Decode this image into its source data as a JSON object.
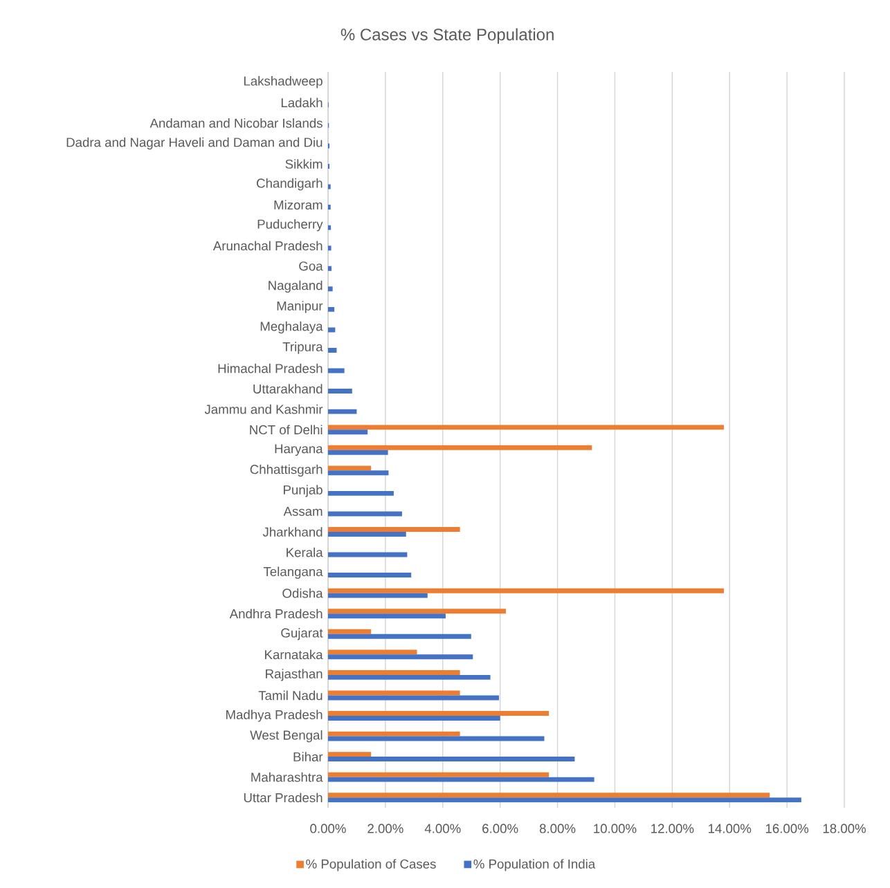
{
  "chart_data": {
    "type": "bar",
    "orientation": "horizontal",
    "title": "% Cases vs State Population",
    "categories": [
      "Lakshadweep",
      "Ladakh",
      "Andaman and Nicobar Islands",
      "Dadra and Nagar Haveli and Daman and Diu",
      "Sikkim",
      "Chandigarh",
      "Mizoram",
      "Puducherry",
      "Arunachal Pradesh",
      "Goa",
      "Nagaland",
      "Manipur",
      "Meghalaya",
      "Tripura",
      "Himachal Pradesh",
      "Uttarakhand",
      "Jammu and Kashmir",
      "NCT of Delhi",
      "Haryana",
      "Chhattisgarh",
      "Punjab",
      "Assam",
      "Jharkhand",
      "Kerala",
      "Telangana",
      "Odisha",
      "Andhra Pradesh",
      "Gujarat",
      "Karnataka",
      "Rajasthan",
      "Tamil Nadu",
      "Madhya Pradesh",
      "West Bengal",
      "Bihar",
      "Maharashtra",
      "Uttar Pradesh"
    ],
    "series": [
      {
        "name": "% Population of Cases",
        "color": "#ed7d31",
        "values": [
          null,
          null,
          null,
          null,
          null,
          null,
          null,
          null,
          null,
          null,
          null,
          null,
          null,
          null,
          null,
          null,
          null,
          13.8,
          9.2,
          1.5,
          null,
          null,
          4.6,
          null,
          null,
          13.8,
          6.2,
          1.5,
          3.1,
          4.6,
          4.6,
          7.7,
          4.6,
          1.5,
          7.7,
          15.4
        ]
      },
      {
        "name": "% Population of India",
        "color": "#4472c4",
        "values": [
          null,
          0.02,
          0.03,
          0.05,
          0.05,
          0.09,
          0.09,
          0.1,
          0.11,
          0.12,
          0.16,
          0.22,
          0.25,
          0.3,
          0.57,
          0.84,
          1.0,
          1.38,
          2.09,
          2.11,
          2.29,
          2.58,
          2.72,
          2.76,
          2.9,
          3.47,
          4.1,
          4.99,
          5.05,
          5.66,
          5.96,
          6.0,
          7.54,
          8.6,
          9.28,
          16.5
        ]
      }
    ],
    "xlim": [
      0,
      18
    ],
    "xticks": [
      {
        "value": 0,
        "label": "0.00%"
      },
      {
        "value": 2,
        "label": "2.00%"
      },
      {
        "value": 4,
        "label": "4.00%"
      },
      {
        "value": 6,
        "label": "6.00%"
      },
      {
        "value": 8,
        "label": "8.00%"
      },
      {
        "value": 10,
        "label": "10.00%"
      },
      {
        "value": 12,
        "label": "12.00%"
      },
      {
        "value": 14,
        "label": "14.00%"
      },
      {
        "value": 16,
        "label": "16.00%"
      },
      {
        "value": 18,
        "label": "18.00%"
      }
    ],
    "grid": "x",
    "legend": "bottom"
  }
}
